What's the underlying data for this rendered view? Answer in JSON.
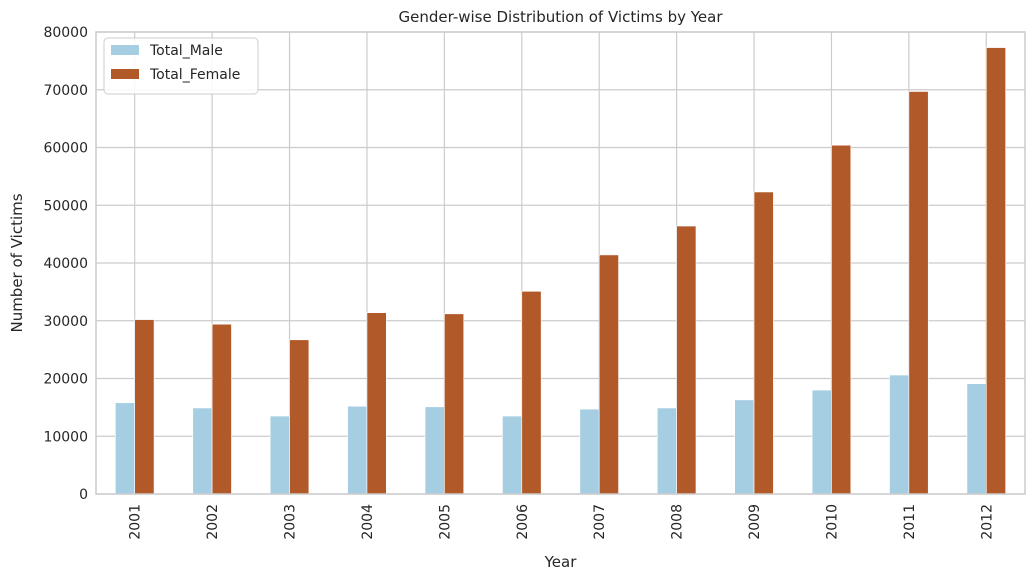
{
  "chart_data": {
    "type": "bar",
    "title": "Gender-wise Distribution of Victims by Year",
    "xlabel": "Year",
    "ylabel": "Number of Victims",
    "categories": [
      "2001",
      "2002",
      "2003",
      "2004",
      "2005",
      "2006",
      "2007",
      "2008",
      "2009",
      "2010",
      "2011",
      "2012"
    ],
    "series": [
      {
        "name": "Total_Male",
        "color": "#a6cee3",
        "values": [
          15800,
          14900,
          13500,
          15200,
          15100,
          13500,
          14700,
          14900,
          16300,
          18000,
          20600,
          19100
        ]
      },
      {
        "name": "Total_Female",
        "color": "#b15928",
        "values": [
          30200,
          29400,
          26700,
          31400,
          31200,
          35100,
          41400,
          46400,
          52300,
          60400,
          69700,
          77300
        ]
      }
    ],
    "ylim": [
      0,
      80000
    ],
    "yticks": [
      "0",
      "10000",
      "20000",
      "30000",
      "40000",
      "50000",
      "60000",
      "70000",
      "80000"
    ],
    "grid": true,
    "legend_position": "top-left",
    "grid_color": "#cccccc",
    "axis_color": "#cccccc"
  }
}
